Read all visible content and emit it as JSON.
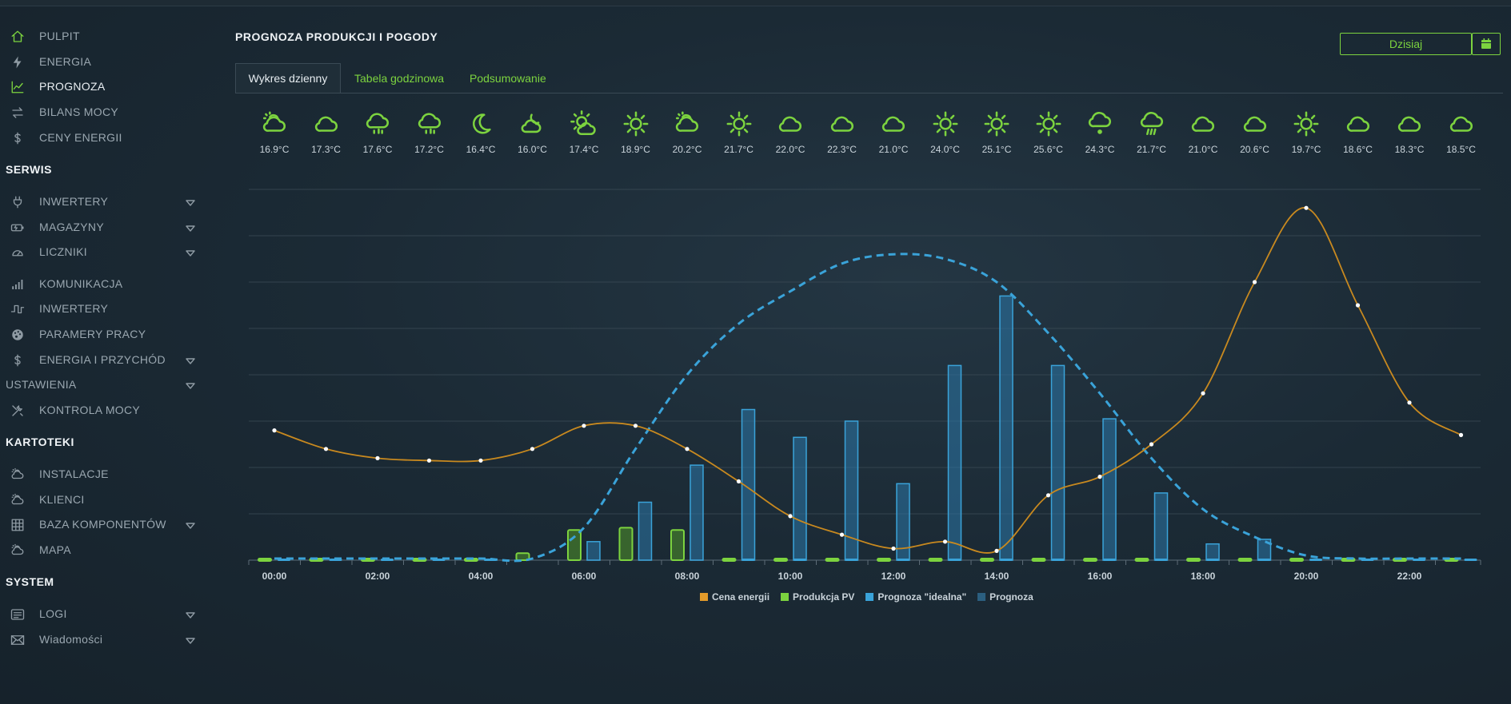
{
  "sidebar": {
    "items": [
      {
        "label": "PULPIT",
        "icon": "home-icon",
        "y": 45,
        "active": false
      },
      {
        "label": "ENERGIA",
        "icon": "bolt-icon",
        "y": 77,
        "active": false
      },
      {
        "label": "PROGNOZA",
        "icon": "chart-line-icon",
        "y": 108,
        "active": true
      },
      {
        "label": "BILANS MOCY",
        "icon": "exchange-icon",
        "y": 140,
        "active": false
      },
      {
        "label": "CENY ENERGII",
        "icon": "dollar-icon",
        "y": 172,
        "active": false
      }
    ],
    "serwis_title": "SERWIS",
    "serwis": [
      {
        "label": "INWERTERY",
        "icon": "plug-icon",
        "caret": true
      },
      {
        "label": "MAGAZYNY",
        "icon": "battery-icon",
        "caret": true
      },
      {
        "label": "LICZNIKI",
        "icon": "gauge-icon",
        "caret": true
      },
      {
        "label": "KOMUNIKACJA",
        "icon": "signal-icon",
        "caret": false
      },
      {
        "label": "INWERTERY",
        "icon": "wave-icon",
        "caret": false
      },
      {
        "label": "PARAMERY PRACY",
        "icon": "palette-icon",
        "caret": false
      },
      {
        "label": "ENERGIA I PRZYCHÓD",
        "icon": "dollar-icon",
        "caret": true
      }
    ],
    "ustawienia_label": "USTAWIENIA",
    "kontrola_label": "KONTROLA MOCY",
    "kartoteki_title": "KARTOTEKI",
    "kartoteki": [
      {
        "label": "INSTALACJE",
        "icon": "cloud-sun-icon",
        "caret": false
      },
      {
        "label": "KLIENCI",
        "icon": "cloud-sun-icon",
        "caret": false
      },
      {
        "label": "BAZA KOMPONENTÓW",
        "icon": "grid-icon",
        "caret": true
      },
      {
        "label": "MAPA",
        "icon": "cloud-sun-icon",
        "caret": false
      }
    ],
    "system_title": "SYSTEM",
    "system": [
      {
        "label": "LOGI",
        "icon": "list-icon",
        "caret": true
      },
      {
        "label": "Wiadomości",
        "icon": "envelope-icon",
        "caret": true
      }
    ]
  },
  "header": {
    "title": "PROGNOZA PRODUKCJI I POGODY",
    "date_label": "Dzisiaj"
  },
  "tabs": [
    {
      "label": "Wykres dzienny"
    },
    {
      "label": "Tabela godzinowa"
    },
    {
      "label": "Podsumowanie"
    }
  ],
  "weather": [
    {
      "icon": "cloud-sun-icon",
      "temp": "16.9°C"
    },
    {
      "icon": "cloud-icon",
      "temp": "17.3°C"
    },
    {
      "icon": "cloud-rain-icon",
      "temp": "17.6°C"
    },
    {
      "icon": "cloud-rain-icon",
      "temp": "17.2°C"
    },
    {
      "icon": "moon-icon",
      "temp": "16.4°C"
    },
    {
      "icon": "cloud-moon-icon",
      "temp": "16.0°C"
    },
    {
      "icon": "sun-cloud-icon",
      "temp": "17.4°C"
    },
    {
      "icon": "sun-icon",
      "temp": "18.9°C"
    },
    {
      "icon": "cloud-sun-icon",
      "temp": "20.2°C"
    },
    {
      "icon": "sun-icon",
      "temp": "21.7°C"
    },
    {
      "icon": "cloud-icon",
      "temp": "22.0°C"
    },
    {
      "icon": "cloud-icon",
      "temp": "22.3°C"
    },
    {
      "icon": "cloud-icon",
      "temp": "21.0°C"
    },
    {
      "icon": "sun-icon",
      "temp": "24.0°C"
    },
    {
      "icon": "sun-icon",
      "temp": "25.1°C"
    },
    {
      "icon": "sun-icon",
      "temp": "25.6°C"
    },
    {
      "icon": "cloud-drizzle-icon",
      "temp": "24.3°C"
    },
    {
      "icon": "cloud-storm-icon",
      "temp": "21.7°C"
    },
    {
      "icon": "cloud-icon",
      "temp": "21.0°C"
    },
    {
      "icon": "cloud-icon",
      "temp": "20.6°C"
    },
    {
      "icon": "sun-icon",
      "temp": "19.7°C"
    },
    {
      "icon": "cloud-icon",
      "temp": "18.6°C"
    },
    {
      "icon": "cloud-icon",
      "temp": "18.3°C"
    },
    {
      "icon": "cloud-icon",
      "temp": "18.5°C"
    }
  ],
  "colors": {
    "accent": "#7cd33f",
    "price": "#e39b2a",
    "ideal": "#3aa3d9",
    "forecast": "#2b5f80"
  },
  "chart_data": {
    "type": "bar",
    "x": [
      "00:00",
      "01:00",
      "02:00",
      "03:00",
      "04:00",
      "05:00",
      "06:00",
      "07:00",
      "08:00",
      "09:00",
      "10:00",
      "11:00",
      "12:00",
      "13:00",
      "14:00",
      "15:00",
      "16:00",
      "17:00",
      "18:00",
      "19:00",
      "20:00",
      "21:00",
      "22:00",
      "23:00"
    ],
    "xticks": [
      "00:00",
      "02:00",
      "04:00",
      "06:00",
      "08:00",
      "10:00",
      "12:00",
      "14:00",
      "16:00",
      "18:00",
      "20:00",
      "22:00"
    ],
    "series": [
      {
        "name": "Cena energii",
        "kind": "line",
        "values": [
          28,
          24,
          22,
          21.5,
          21.5,
          24,
          29,
          29,
          24,
          17,
          9.5,
          5.5,
          2.5,
          4,
          2,
          14,
          18,
          25,
          36,
          60,
          76,
          55,
          34,
          27
        ]
      },
      {
        "name": "Produkcja PV",
        "kind": "bar",
        "values": [
          0.5,
          0.5,
          0.5,
          0.5,
          0.5,
          1.5,
          6.5,
          7,
          6.5,
          0.5,
          0.5,
          0.5,
          0.5,
          0.5,
          0.5,
          0.5,
          0.5,
          0.5,
          0.5,
          0.5,
          0.5,
          0.5,
          0.5,
          0.5
        ]
      },
      {
        "name": "Prognoza \"idealna\"",
        "kind": "dashed-line",
        "values": [
          0,
          0,
          0,
          0,
          0,
          0,
          7,
          24,
          40,
          51,
          58,
          64,
          66,
          65,
          60,
          49,
          36,
          22,
          11,
          5,
          1,
          0,
          0,
          0
        ]
      },
      {
        "name": "Prognoza",
        "kind": "bar",
        "values": [
          0,
          0,
          0,
          0,
          0,
          0,
          4,
          12.5,
          20.5,
          32.5,
          26.5,
          30,
          16.5,
          42,
          57,
          42,
          30.5,
          14.5,
          3.5,
          4.5,
          0,
          0,
          0,
          0
        ]
      }
    ],
    "ylim": [
      0,
      80
    ],
    "grid": true,
    "legend_position": "bottom"
  }
}
